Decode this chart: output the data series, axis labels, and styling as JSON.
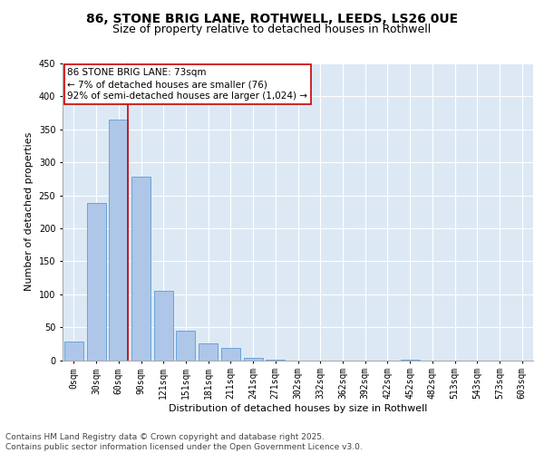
{
  "title_line1": "86, STONE BRIG LANE, ROTHWELL, LEEDS, LS26 0UE",
  "title_line2": "Size of property relative to detached houses in Rothwell",
  "xlabel": "Distribution of detached houses by size in Rothwell",
  "ylabel": "Number of detached properties",
  "bar_labels": [
    "0sqm",
    "30sqm",
    "60sqm",
    "90sqm",
    "121sqm",
    "151sqm",
    "181sqm",
    "211sqm",
    "241sqm",
    "271sqm",
    "302sqm",
    "332sqm",
    "362sqm",
    "392sqm",
    "422sqm",
    "452sqm",
    "482sqm",
    "513sqm",
    "543sqm",
    "573sqm",
    "603sqm"
  ],
  "bar_values": [
    28,
    238,
    365,
    278,
    105,
    45,
    25,
    18,
    3,
    1,
    0,
    0,
    0,
    0,
    0,
    1,
    0,
    0,
    0,
    0,
    0
  ],
  "bar_color": "#aec6e8",
  "bar_edge_color": "#5b9bd5",
  "background_color": "#dce9f5",
  "grid_color": "#ffffff",
  "vline_color": "#cc0000",
  "vline_pos": 2.43,
  "annotation_text": "86 STONE BRIG LANE: 73sqm\n← 7% of detached houses are smaller (76)\n92% of semi-detached houses are larger (1,024) →",
  "annotation_box_color": "#cc0000",
  "ylim": [
    0,
    450
  ],
  "yticks": [
    0,
    50,
    100,
    150,
    200,
    250,
    300,
    350,
    400,
    450
  ],
  "footer_text": "Contains HM Land Registry data © Crown copyright and database right 2025.\nContains public sector information licensed under the Open Government Licence v3.0.",
  "title_fontsize": 10,
  "subtitle_fontsize": 9,
  "axis_label_fontsize": 8,
  "tick_fontsize": 7,
  "annotation_fontsize": 7.5,
  "footer_fontsize": 6.5
}
